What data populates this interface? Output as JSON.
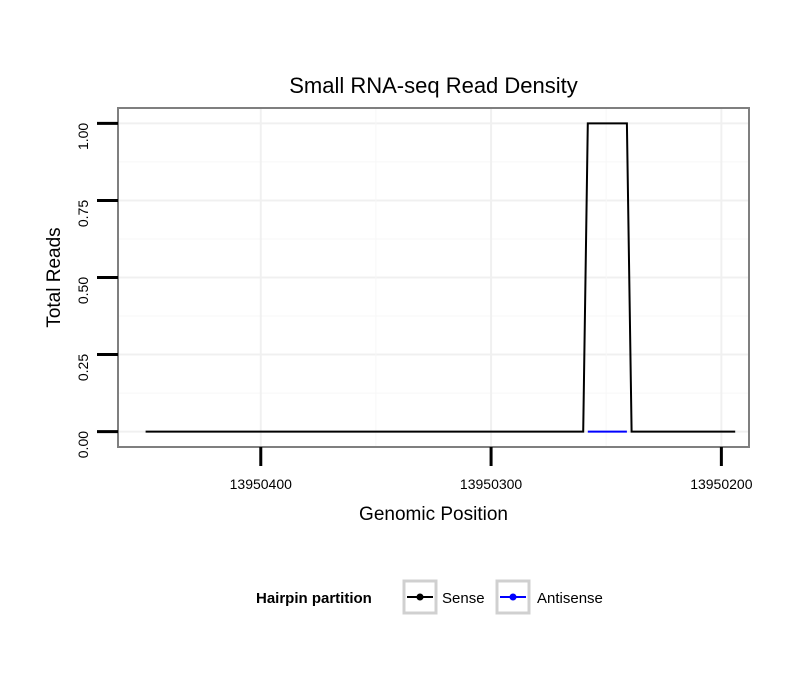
{
  "chart_data": {
    "type": "line",
    "title": "Small RNA-seq Read Density",
    "xlabel": "Genomic Position",
    "ylabel": "Total Reads",
    "xlim": [
      13950462,
      13950188
    ],
    "ylim": [
      -0.05,
      1.05
    ],
    "x_reversed": true,
    "x_ticks": [
      13950400,
      13950300,
      13950200
    ],
    "x_tick_labels": [
      "13950400",
      "13950300",
      "13950200"
    ],
    "y_ticks": [
      0,
      0.25,
      0.5,
      0.75,
      1.0
    ],
    "y_tick_labels": [
      "0.00",
      "0.25",
      "0.50",
      "0.75",
      "1.00"
    ],
    "grid": true,
    "legend": {
      "title": "Hairpin partition",
      "position": "bottom",
      "entries": [
        "Sense",
        "Antisense"
      ]
    },
    "series": [
      {
        "name": "Sense",
        "color": "#000000",
        "x": [
          13950450,
          13950260,
          13950258,
          13950241,
          13950239,
          13950194
        ],
        "y": [
          0,
          0,
          1,
          1,
          0,
          0
        ]
      },
      {
        "name": "Antisense",
        "color": "#0000ff",
        "x": [
          13950258,
          13950241
        ],
        "y": [
          0,
          0
        ]
      }
    ]
  }
}
